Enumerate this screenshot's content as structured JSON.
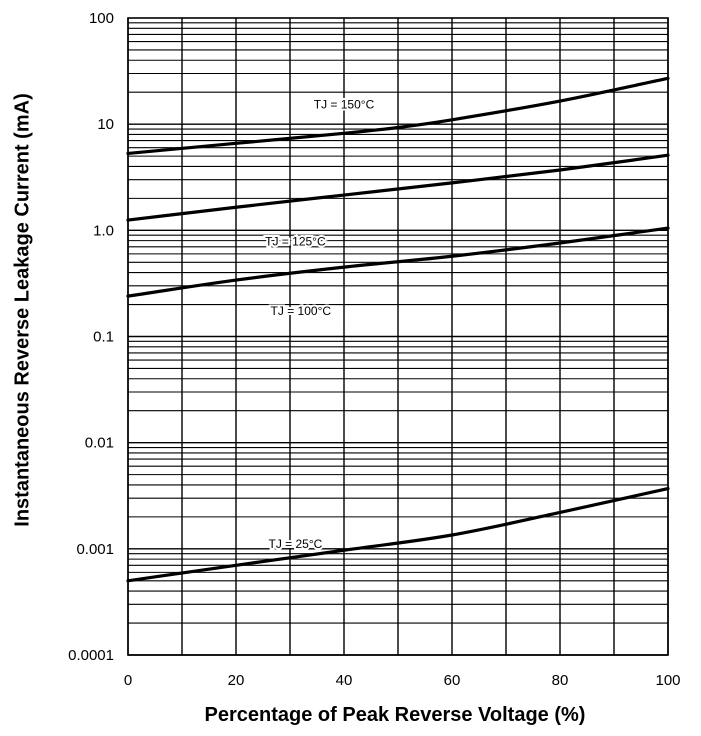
{
  "chart_data": {
    "type": "line",
    "xlabel": "Percentage of Peak Reverse Voltage (%)",
    "ylabel": "Instantaneous Reverse Leakage Current (mA)",
    "xlim": [
      0,
      100
    ],
    "ylim": [
      0.0001,
      100
    ],
    "yscale": "log",
    "grid": true,
    "x_ticks": [
      "0",
      "20",
      "40",
      "60",
      "80",
      "100"
    ],
    "y_ticks": [
      "0.0001",
      "0.001",
      "0.01",
      "0.1",
      "1.0",
      "10",
      "100"
    ],
    "x_tick_values": [
      0,
      20,
      40,
      60,
      80,
      100
    ],
    "y_tick_values": [
      0.0001,
      0.001,
      0.01,
      0.1,
      1,
      10,
      100
    ],
    "series": [
      {
        "name": "TJ = 150°C",
        "x": [
          0,
          20,
          40,
          50,
          60,
          80,
          100
        ],
        "values": [
          5.3,
          6.6,
          8.2,
          9.3,
          11.0,
          16.5,
          27.0
        ]
      },
      {
        "name": "TJ = 125°C",
        "x": [
          0,
          20,
          40,
          60,
          80,
          100
        ],
        "values": [
          1.25,
          1.65,
          2.15,
          2.8,
          3.7,
          5.1
        ]
      },
      {
        "name": "TJ = 100°C",
        "x": [
          0,
          20,
          40,
          60,
          80,
          100
        ],
        "values": [
          0.24,
          0.34,
          0.45,
          0.57,
          0.76,
          1.05
        ]
      },
      {
        "name": "TJ = 25°C",
        "x": [
          0,
          20,
          40,
          60,
          80,
          100
        ],
        "values": [
          0.0005,
          0.0007,
          0.00097,
          0.00135,
          0.0022,
          0.0037
        ]
      }
    ],
    "annotations": [
      {
        "label": "TJ = 150°C",
        "x": 40,
        "y": 14
      },
      {
        "label": "TJ = 125°C",
        "x": 31,
        "y": 0.72
      },
      {
        "label": "TJ = 100°C",
        "x": 32,
        "y": 0.16
      },
      {
        "label": "TJ = 25°C",
        "x": 31,
        "y": 0.00102
      }
    ]
  }
}
